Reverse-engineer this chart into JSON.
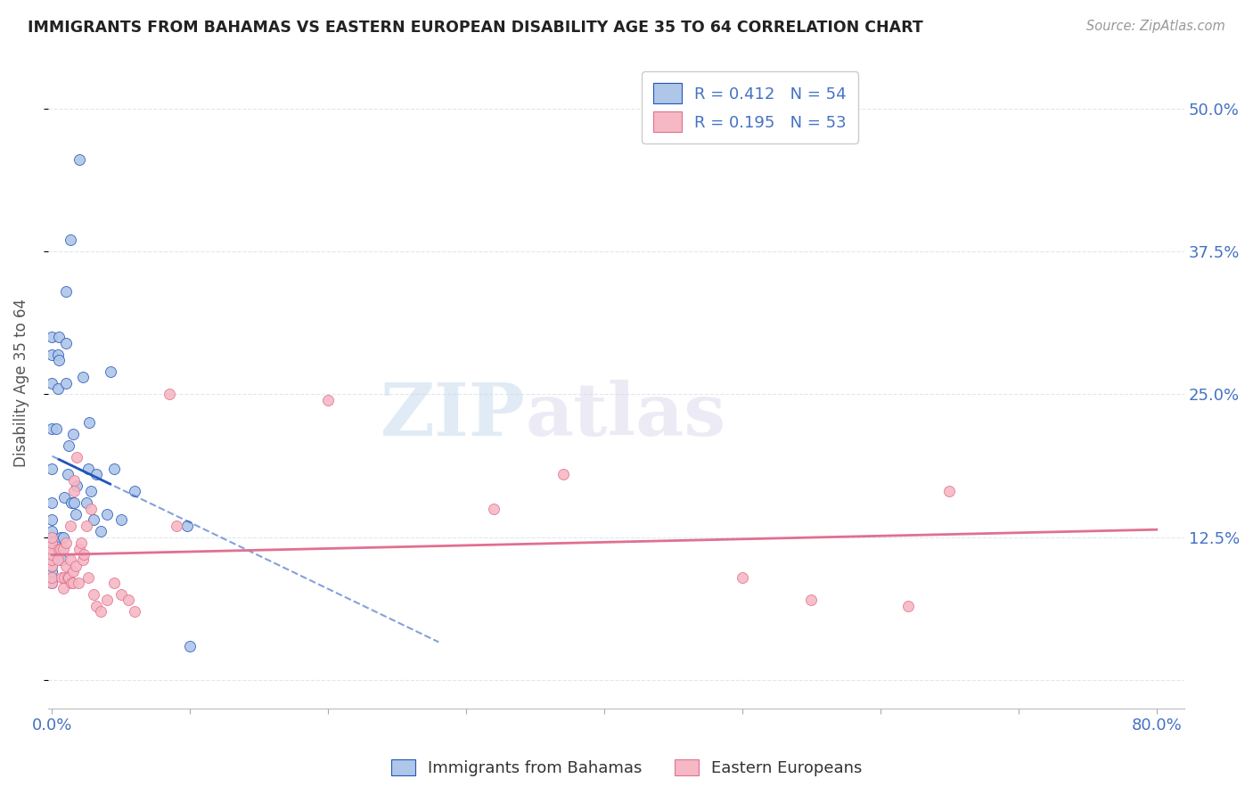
{
  "title": "IMMIGRANTS FROM BAHAMAS VS EASTERN EUROPEAN DISABILITY AGE 35 TO 64 CORRELATION CHART",
  "source": "Source: ZipAtlas.com",
  "ylabel": "Disability Age 35 to 64",
  "bahamas_R": 0.412,
  "bahamas_N": 54,
  "eastern_R": 0.195,
  "eastern_N": 53,
  "bahamas_color": "#aec6e8",
  "eastern_color": "#f5b8c4",
  "trendline_bahamas_color": "#2255bb",
  "trendline_eastern_color": "#e07090",
  "watermark_zip": "ZIP",
  "watermark_atlas": "atlas",
  "xlim": [
    -0.003,
    0.82
  ],
  "ylim": [
    -0.025,
    0.545
  ],
  "x_ticks": [
    0.0,
    0.1,
    0.2,
    0.3,
    0.4,
    0.5,
    0.6,
    0.7,
    0.8
  ],
  "x_tick_labels": [
    "0.0%",
    "",
    "",
    "",
    "",
    "",
    "",
    "",
    "80.0%"
  ],
  "y_ticks": [
    0.0,
    0.125,
    0.25,
    0.375,
    0.5
  ],
  "y_tick_labels": [
    "",
    "12.5%",
    "25.0%",
    "37.5%",
    "50.0%"
  ],
  "background_color": "#ffffff",
  "grid_color": "#dde8f0",
  "bahamas_x": [
    0.0,
    0.0,
    0.0,
    0.0,
    0.0,
    0.0,
    0.0,
    0.0,
    0.0,
    0.0,
    0.0,
    0.0,
    0.0,
    0.0,
    0.0,
    0.0,
    0.0,
    0.003,
    0.004,
    0.004,
    0.005,
    0.005,
    0.006,
    0.006,
    0.007,
    0.008,
    0.009,
    0.01,
    0.01,
    0.01,
    0.011,
    0.012,
    0.013,
    0.014,
    0.015,
    0.016,
    0.017,
    0.018,
    0.02,
    0.022,
    0.025,
    0.026,
    0.027,
    0.028,
    0.03,
    0.032,
    0.035,
    0.04,
    0.042,
    0.045,
    0.05,
    0.06,
    0.098,
    0.1
  ],
  "bahamas_y": [
    0.085,
    0.09,
    0.095,
    0.1,
    0.105,
    0.11,
    0.115,
    0.12,
    0.125,
    0.13,
    0.14,
    0.155,
    0.185,
    0.22,
    0.26,
    0.285,
    0.3,
    0.22,
    0.255,
    0.285,
    0.28,
    0.3,
    0.115,
    0.125,
    0.105,
    0.125,
    0.16,
    0.26,
    0.295,
    0.34,
    0.18,
    0.205,
    0.385,
    0.155,
    0.215,
    0.155,
    0.145,
    0.17,
    0.455,
    0.265,
    0.155,
    0.185,
    0.225,
    0.165,
    0.14,
    0.18,
    0.13,
    0.145,
    0.27,
    0.185,
    0.14,
    0.165,
    0.135,
    0.03
  ],
  "eastern_x": [
    0.0,
    0.0,
    0.0,
    0.0,
    0.0,
    0.0,
    0.0,
    0.0,
    0.004,
    0.005,
    0.006,
    0.007,
    0.008,
    0.008,
    0.009,
    0.01,
    0.01,
    0.011,
    0.012,
    0.013,
    0.013,
    0.014,
    0.015,
    0.015,
    0.016,
    0.016,
    0.017,
    0.018,
    0.019,
    0.02,
    0.021,
    0.022,
    0.023,
    0.025,
    0.026,
    0.028,
    0.03,
    0.032,
    0.035,
    0.04,
    0.045,
    0.05,
    0.055,
    0.06,
    0.085,
    0.09,
    0.2,
    0.32,
    0.37,
    0.5,
    0.55,
    0.62,
    0.65
  ],
  "eastern_y": [
    0.085,
    0.09,
    0.1,
    0.105,
    0.11,
    0.115,
    0.12,
    0.125,
    0.105,
    0.115,
    0.115,
    0.09,
    0.08,
    0.115,
    0.09,
    0.1,
    0.12,
    0.09,
    0.09,
    0.105,
    0.135,
    0.085,
    0.085,
    0.095,
    0.165,
    0.175,
    0.1,
    0.195,
    0.085,
    0.115,
    0.12,
    0.105,
    0.11,
    0.135,
    0.09,
    0.15,
    0.075,
    0.065,
    0.06,
    0.07,
    0.085,
    0.075,
    0.07,
    0.06,
    0.25,
    0.135,
    0.245,
    0.15,
    0.18,
    0.09,
    0.07,
    0.065,
    0.165
  ]
}
